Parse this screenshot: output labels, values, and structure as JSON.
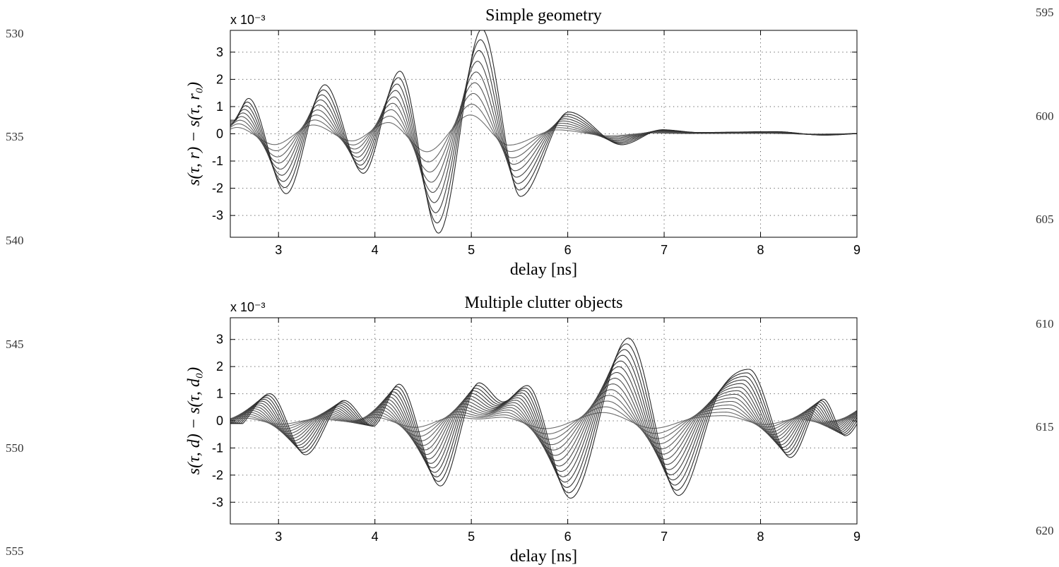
{
  "line_numbers": {
    "left": [
      "530",
      "535",
      "540",
      "545",
      "550",
      "555"
    ],
    "right": [
      "595",
      "600",
      "605",
      "610",
      "615",
      "620"
    ]
  },
  "chart_data": [
    {
      "type": "line",
      "title": "Simple geometry",
      "xlabel": "delay [ns]",
      "ylabel": "s(τ, r) − s(τ, r₀)",
      "y_multiplier_label": "x 10⁻³",
      "xlim": [
        2.5,
        9
      ],
      "ylim": [
        -3.8,
        3.8
      ],
      "xticks": [
        3,
        4,
        5,
        6,
        7,
        8,
        9
      ],
      "yticks": [
        -3,
        -2,
        -1,
        0,
        1,
        2,
        3
      ],
      "grid": "dotted",
      "n_curves": 9,
      "line_color": "#333333",
      "series_family": {
        "x_keypoints": [
          2.5,
          2.63,
          3.02,
          3.42,
          3.82,
          4.2,
          4.6,
          5.05,
          5.45,
          5.95,
          6.5,
          6.92,
          7.3,
          8.1,
          8.6,
          9.0
        ],
        "envelope_y": [
          0.5,
          1.3,
          -2.2,
          1.8,
          -1.45,
          2.3,
          -3.65,
          3.85,
          -2.3,
          0.8,
          -0.4,
          0.15,
          0.05,
          0.08,
          -0.05,
          0.02
        ],
        "min_scale": 0.18,
        "time_shift_ns": 0.12
      }
    },
    {
      "type": "line",
      "title": "Multiple clutter objects",
      "xlabel": "delay [ns]",
      "ylabel": "s(τ, d) − s(τ, d₀)",
      "y_multiplier_label": "x 10⁻³",
      "xlim": [
        2.5,
        9
      ],
      "ylim": [
        -3.8,
        3.8
      ],
      "xticks": [
        3,
        4,
        5,
        6,
        7,
        8,
        9
      ],
      "yticks": [
        -3,
        -2,
        -1,
        0,
        1,
        2,
        3
      ],
      "grid": "dotted",
      "n_curves": 14,
      "line_color": "#333333",
      "series_family": {
        "x_keypoints": [
          2.5,
          2.78,
          3.15,
          3.55,
          3.85,
          4.12,
          4.55,
          4.95,
          5.2,
          5.45,
          5.9,
          6.5,
          7.02,
          7.45,
          7.75,
          8.18,
          8.52,
          8.75,
          9.0
        ],
        "envelope_y": [
          -0.1,
          1.0,
          -1.25,
          0.75,
          -0.2,
          1.35,
          -2.4,
          1.4,
          0.7,
          1.3,
          -2.85,
          3.05,
          -2.75,
          1.1,
          1.9,
          -1.35,
          0.8,
          -0.55,
          0.7
        ],
        "min_scale": 0.1,
        "time_shift_ns": 0.26
      }
    }
  ]
}
